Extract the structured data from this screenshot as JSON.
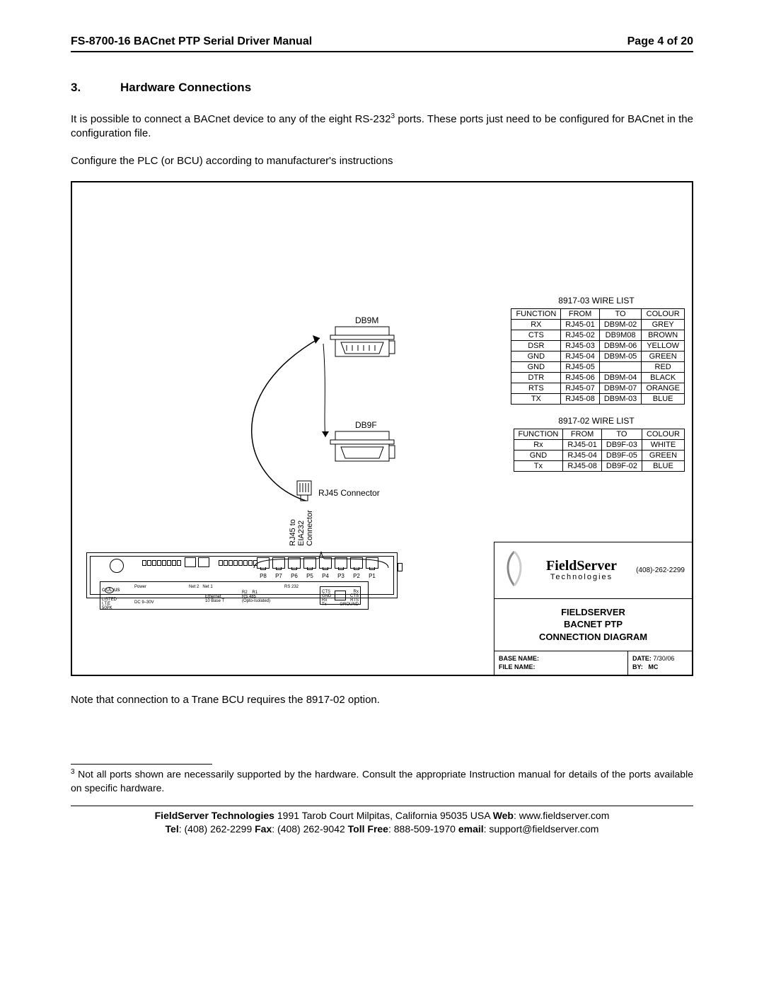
{
  "header": {
    "title": "FS-8700-16 BACnet PTP Serial Driver Manual",
    "page": "Page 4 of 20"
  },
  "section": {
    "number": "3.",
    "title": "Hardware Connections"
  },
  "para1_a": "It is possible to connect a BACnet device to any of the eight RS-232",
  "para1_sup": "3",
  "para1_b": " ports. These ports just need to be configured for BACnet in the configuration file.",
  "para2": "Configure the PLC (or BCU) according to manufacturer's instructions",
  "diagram": {
    "wire1_title": "8917-03 WIRE LIST",
    "wire1": {
      "headers": [
        "FUNCTION",
        "FROM",
        "TO",
        "COLOUR"
      ],
      "rows": [
        [
          "RX",
          "RJ45-01",
          "DB9M-02",
          "GREY"
        ],
        [
          "CTS",
          "RJ45-02",
          "DB9M08",
          "BROWN"
        ],
        [
          "DSR",
          "RJ45-03",
          "DB9M-06",
          "YELLOW"
        ],
        [
          "GND",
          "RJ45-04",
          "DB9M-05",
          "GREEN"
        ],
        [
          "GND",
          "RJ45-05",
          "",
          "RED"
        ],
        [
          "DTR",
          "RJ45-06",
          "DB9M-04",
          "BLACK"
        ],
        [
          "RTS",
          "RJ45-07",
          "DB9M-07",
          "ORANGE"
        ],
        [
          "TX",
          "RJ45-08",
          "DB9M-03",
          "BLUE"
        ]
      ]
    },
    "wire2_title": "8917-02 WIRE LIST",
    "wire2": {
      "headers": [
        "FUNCTION",
        "FROM",
        "TO",
        "COLOUR"
      ],
      "rows": [
        [
          "Rx",
          "RJ45-01",
          "DB9F-03",
          "WHITE"
        ],
        [
          "GND",
          "RJ45-04",
          "DB9F-05",
          "GREEN"
        ],
        [
          "Tx",
          "RJ45-08",
          "DB9F-02",
          "BLUE"
        ]
      ]
    },
    "db9m_label": "DB9M",
    "db9f_label": "DB9F",
    "rj45_label": "RJ45 Connector",
    "vert_label": "RJ45 to\nEIA232\nConnector",
    "ports": [
      "P8",
      "P7",
      "P6",
      "P5",
      "P4",
      "P3",
      "P2",
      "P1"
    ],
    "info": {
      "logo_main": "FieldServer",
      "logo_sub": "Technologies",
      "phone": "(408)-262-2299",
      "title_l1": "FIELDSERVER",
      "title_l2": "BACNET PTP",
      "title_l3": "CONNECTION DIAGRAM",
      "base_name_label": "BASE NAME:",
      "file_name_label": "FILE NAME:",
      "date_label": "DATE:",
      "date_val": "7/30/06",
      "by_label": "BY:",
      "by_val": "MC"
    }
  },
  "note": "Note that connection to a Trane BCU requires the 8917-02 option.",
  "footnote_num": "3",
  "footnote": " Not all ports shown are necessarily supported by the hardware. Consult the appropriate Instruction manual for details of the ports available on specific hardware.",
  "footer": {
    "l1_a": "FieldServer Technologies",
    "l1_b": " 1991 Tarob Court Milpitas, California 95035 USA ",
    "l1_c": "Web",
    "l1_d": ": www.fieldserver.com",
    "l2_a": "Tel",
    "l2_b": ": (408) 262-2299 ",
    "l2_c": "Fax",
    "l2_d": ": (408) 262-9042 ",
    "l2_e": "Toll Free",
    "l2_f": ": 888-509-1970 ",
    "l2_g": "email",
    "l2_h": ": support@fieldserver.com"
  }
}
